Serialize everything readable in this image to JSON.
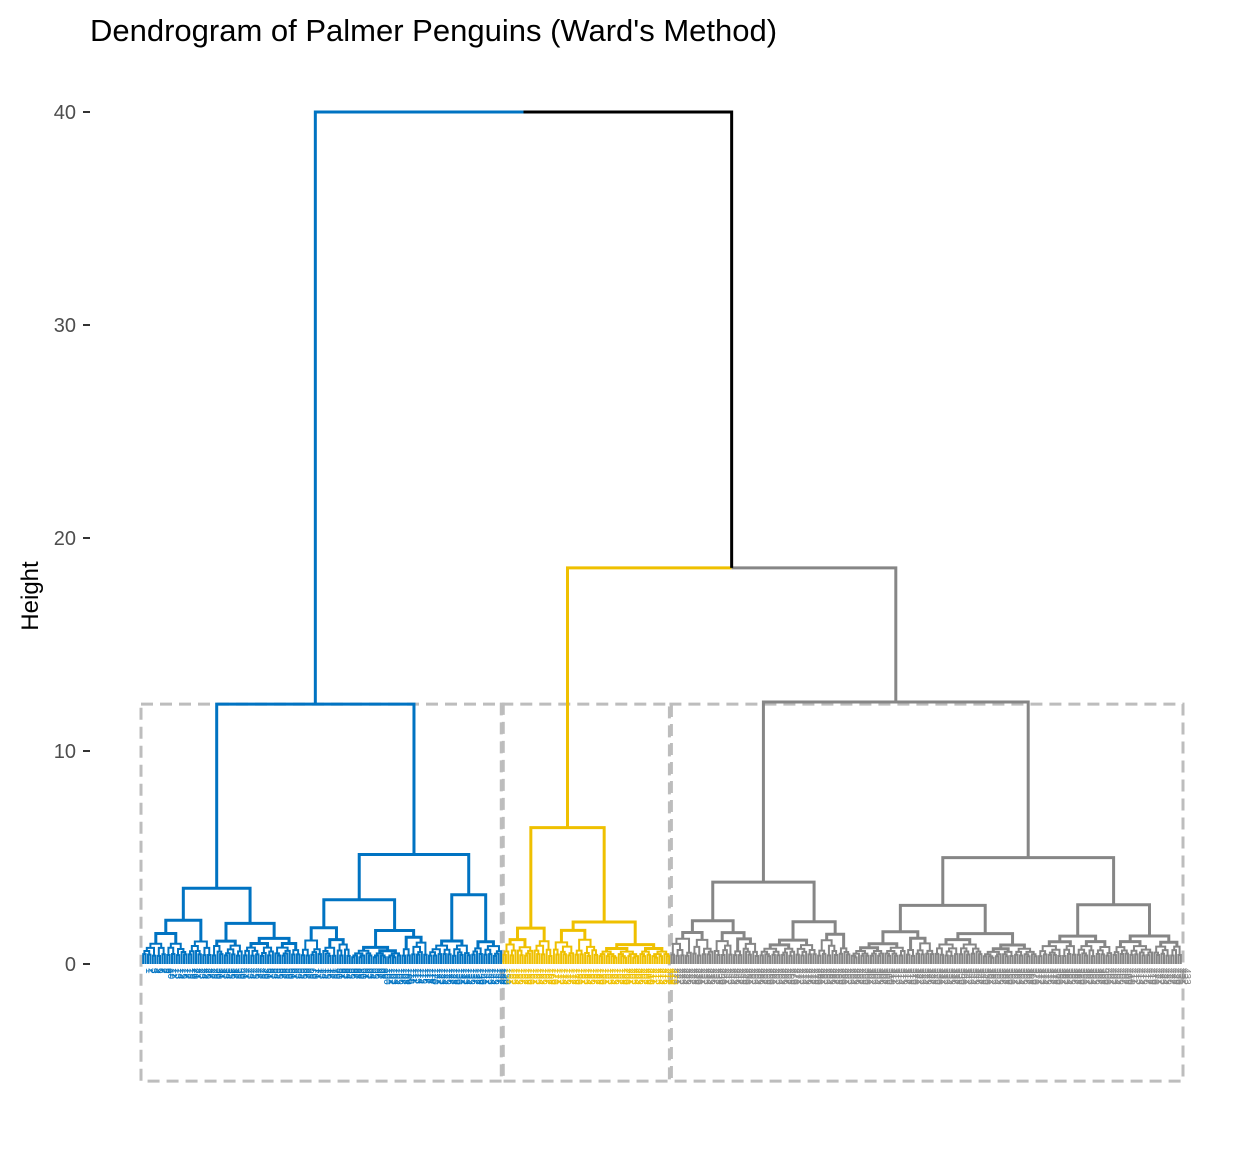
{
  "chart_data": {
    "type": "dendrogram",
    "title": "Dendrogram of Palmer Penguins (Ward's Method)",
    "xlabel": "",
    "ylabel": "Height",
    "ylim": [
      -5.5,
      42
    ],
    "yticks": [
      0,
      10,
      20,
      30,
      40
    ],
    "grid": false,
    "legend": "none",
    "k_clusters": 3,
    "cut_height": 12.2,
    "root_height": 40.0,
    "colors": {
      "cluster_1": "#0073c2",
      "cluster_2": "#efc000",
      "cluster_3": "#868686",
      "root": "#000000",
      "rect": "#bdbdbd"
    },
    "merges": [
      {
        "name": "root",
        "height": 40.0,
        "left": "cluster_1",
        "right": "yellow-grey"
      },
      {
        "name": "yellow-grey",
        "height": 18.6,
        "left": "cluster_2",
        "right": "cluster_3"
      },
      {
        "name": "cluster_1",
        "height": 12.2
      },
      {
        "name": "cluster_3",
        "height": 12.3
      },
      {
        "name": "cluster_2",
        "height": 6.4
      }
    ],
    "clusters": [
      {
        "name": "cluster_1",
        "color": "#0073c2",
        "leaf_start": 0,
        "leaf_count": 150
      },
      {
        "name": "cluster_2",
        "color": "#efc000",
        "leaf_start": 150,
        "leaf_count": 70
      },
      {
        "name": "cluster_3",
        "color": "#868686",
        "leaf_start": 220,
        "leaf_count": 213
      }
    ],
    "leaf_count": 433
  }
}
